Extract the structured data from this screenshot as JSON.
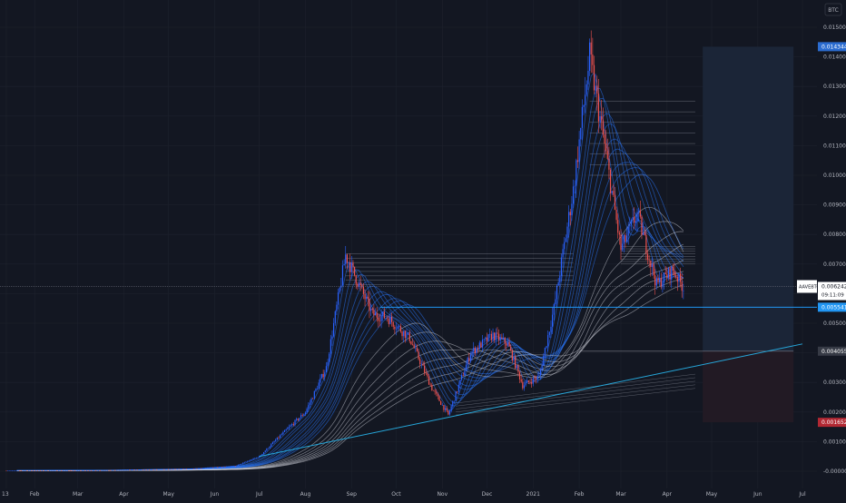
{
  "currency_label": "BTC",
  "colors": {
    "background": "#131722",
    "grid": "#1e222d",
    "candle_up": "#2962ff",
    "candle_down": "#ef5350",
    "ribbon_blue": "#2979ff",
    "ribbon_white": "#d1d4dc",
    "trend_line": "#26a6d9",
    "support_line": "#2196f3",
    "price_badge": "#5b9cf6",
    "upper_badge": "#2b6cd0",
    "target_badge": "#363a45",
    "stop_badge": "#b22833",
    "profit_zone": "#1b2537",
    "loss_zone": "#221a24"
  },
  "chart_data": {
    "type": "candlestick",
    "title": "",
    "xlabel": "",
    "ylabel": "",
    "ylim": [
      -0.0001,
      0.0156
    ],
    "y_ticks": [
      "-0.000000",
      "0.001000",
      "0.002000",
      "0.003000",
      "0.004000",
      "0.005000",
      "0.006000",
      "0.007000",
      "0.008000",
      "0.009000",
      "0.010000",
      "0.011000",
      "0.012000",
      "0.013000",
      "0.014000",
      "0.015000"
    ],
    "x_labels": [
      "13",
      "Feb",
      "Mar",
      "Apr",
      "May",
      "Jun",
      "Jul",
      "Aug",
      "Sep",
      "Oct",
      "Nov",
      "Dec",
      "2021",
      "Feb",
      "Mar",
      "Apr",
      "May",
      "Jun",
      "Jul"
    ],
    "price_key_points": [
      [
        "2020-01-13",
        2e-05
      ],
      [
        "2020-03-15",
        3e-05
      ],
      [
        "2020-05-15",
        8e-05
      ],
      [
        "2020-06-15",
        0.00018
      ],
      [
        "2020-07-01",
        0.0005
      ],
      [
        "2020-07-15",
        0.0012
      ],
      [
        "2020-08-01",
        0.002
      ],
      [
        "2020-08-15",
        0.0035
      ],
      [
        "2020-08-28",
        0.0073
      ],
      [
        "2020-09-15",
        0.0053
      ],
      [
        "2020-09-25",
        0.0052
      ],
      [
        "2020-10-10",
        0.0045
      ],
      [
        "2020-10-25",
        0.0028
      ],
      [
        "2020-11-05",
        0.0019
      ],
      [
        "2020-11-20",
        0.004
      ],
      [
        "2020-12-05",
        0.0046
      ],
      [
        "2020-12-15",
        0.0043
      ],
      [
        "2020-12-25",
        0.0029
      ],
      [
        "2021-01-05",
        0.0032
      ],
      [
        "2021-01-15",
        0.0055
      ],
      [
        "2021-01-28",
        0.0095
      ],
      [
        "2021-02-08",
        0.014
      ],
      [
        "2021-02-18",
        0.011
      ],
      [
        "2021-03-01",
        0.0075
      ],
      [
        "2021-03-12",
        0.0087
      ],
      [
        "2021-03-25",
        0.0063
      ],
      [
        "2021-04-05",
        0.0068
      ],
      [
        "2021-04-12",
        0.0062
      ]
    ],
    "price_badges": [
      {
        "label": "0.014344",
        "value": 0.014344
      },
      {
        "label": "0.006242",
        "value": 0.006242
      },
      {
        "label": "0.005541",
        "value": 0.005541
      },
      {
        "label": "0.004055",
        "value": 0.004055
      },
      {
        "label": "0.001652",
        "value": 0.001652
      }
    ],
    "current_price": {
      "symbol": "AAVEBTC",
      "value": "0.006242",
      "countdown": "09:11:09"
    },
    "support_level": 0.005541,
    "trend_line": {
      "from": [
        "2020-07-01",
        0.0005
      ],
      "to": [
        "2021-07-01",
        0.0043
      ]
    },
    "long_position": {
      "entry": 0.004055,
      "target": 0.014344,
      "stop": 0.001652,
      "from": "2021-04-25",
      "to": "2021-06-25"
    },
    "resistance_bands": [
      {
        "from": "2020-08-28",
        "to": "2021-01-28",
        "top": 0.00735,
        "bottom": 0.0063
      },
      {
        "from": "2021-02-08",
        "to": "2021-04-20",
        "top": 0.0125,
        "bottom": 0.01
      },
      {
        "from": "2021-03-01",
        "to": "2021-04-20",
        "top": 0.0076,
        "bottom": 0.007
      }
    ],
    "grid": true
  }
}
